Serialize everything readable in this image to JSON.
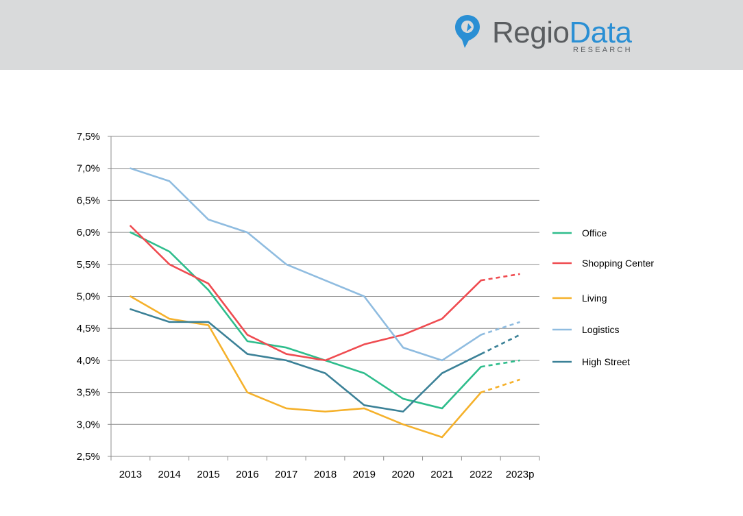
{
  "brand": {
    "name_part1": "Regio",
    "name_part2": "Data",
    "subtitle": "RESEARCH",
    "colors": {
      "header_bg": "#d9dadb",
      "accent": "#2a8fd4",
      "text": "#5a5d60"
    }
  },
  "chart_data": {
    "type": "line",
    "title": "",
    "xlabel": "",
    "ylabel": "",
    "categories": [
      "2013",
      "2014",
      "2015",
      "2016",
      "2017",
      "2018",
      "2019",
      "2020",
      "2021",
      "2022",
      "2023p"
    ],
    "ylim": [
      2.5,
      7.5
    ],
    "yticks": [
      2.5,
      3.0,
      3.5,
      4.0,
      4.5,
      5.0,
      5.5,
      6.0,
      6.5,
      7.0,
      7.5
    ],
    "ytick_labels": [
      "2,5%",
      "3,0%",
      "3,5%",
      "4,0%",
      "4,5%",
      "5,0%",
      "5,5%",
      "6,0%",
      "6,5%",
      "7,0%",
      "7,5%"
    ],
    "grid": "horizontal",
    "legend_position": "right",
    "projection_note": "last segment (2022 to 2023p) drawn dashed",
    "series": [
      {
        "name": "Office",
        "color": "#2ebd8c",
        "values": [
          6.0,
          5.7,
          5.1,
          4.3,
          4.2,
          4.0,
          3.8,
          3.4,
          3.25,
          3.9,
          4.0
        ]
      },
      {
        "name": "Shopping Center",
        "color": "#ef4b50",
        "values": [
          6.1,
          5.5,
          5.2,
          4.4,
          4.1,
          4.0,
          4.25,
          4.4,
          4.65,
          5.25,
          5.35
        ]
      },
      {
        "name": "Living",
        "color": "#f5b12b",
        "values": [
          5.0,
          4.65,
          4.55,
          3.5,
          3.25,
          3.2,
          3.25,
          3.0,
          2.8,
          3.5,
          3.7
        ]
      },
      {
        "name": "Logistics",
        "color": "#8fbce0",
        "values": [
          7.0,
          6.8,
          6.2,
          6.0,
          5.5,
          5.25,
          5.0,
          4.2,
          4.0,
          4.4,
          4.6
        ]
      },
      {
        "name": "High Street",
        "color": "#3b8197",
        "values": [
          4.8,
          4.6,
          4.6,
          4.1,
          4.0,
          3.8,
          3.3,
          3.2,
          3.8,
          4.1,
          4.4
        ]
      }
    ]
  }
}
